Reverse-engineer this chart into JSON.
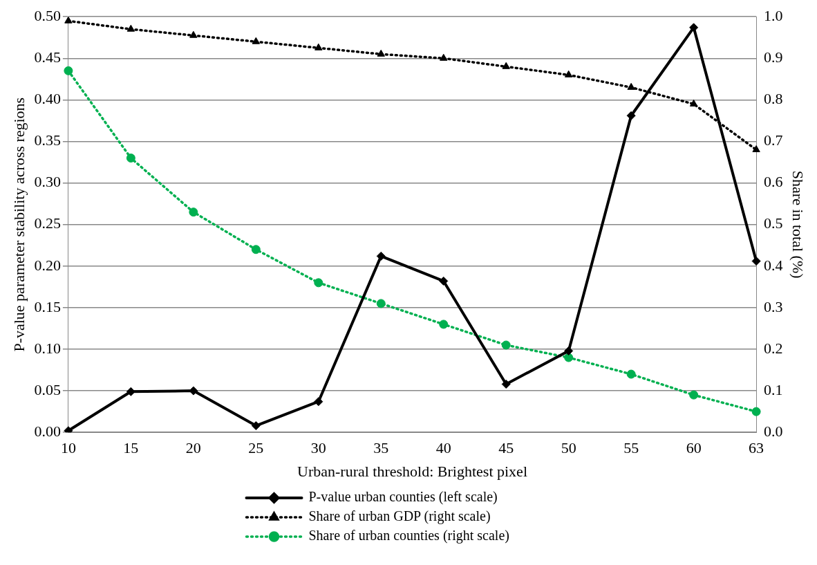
{
  "chart_data": {
    "type": "line",
    "xlabel": "Urban-rural threshold: Brightest pixel",
    "ylabel": "P-value parameter stability across regions",
    "y2label": "Share in total (%)",
    "categories": [
      "10",
      "15",
      "20",
      "25",
      "30",
      "35",
      "40",
      "45",
      "50",
      "55",
      "60",
      "63"
    ],
    "series": [
      {
        "name": "P-value urban counties (left scale)",
        "color": "#000000",
        "marker": "diamond",
        "line_style": "solid",
        "values": [
          0.002,
          0.049,
          0.05,
          0.008,
          0.037,
          0.212,
          0.182,
          0.058,
          0.098,
          0.381,
          0.487,
          0.206
        ]
      },
      {
        "name": "Share of urban GDP (right scale)",
        "color": "#000000",
        "marker": "triangle",
        "line_style": "dotted",
        "axis": "y2",
        "values": [
          0.99,
          0.97,
          0.955,
          0.94,
          0.925,
          0.91,
          0.9,
          0.88,
          0.86,
          0.83,
          0.79,
          0.68
        ]
      },
      {
        "name": "Share of urban counties (right scale)",
        "color": "#00b050",
        "marker": "circle",
        "line_style": "dotted",
        "axis": "y2",
        "values": [
          0.87,
          0.66,
          0.53,
          0.44,
          0.36,
          0.31,
          0.26,
          0.21,
          0.18,
          0.14,
          0.09,
          0.05
        ]
      }
    ],
    "ylim": [
      0,
      0.5
    ],
    "yticks": [
      {
        "value": 0,
        "label": "0.00"
      },
      {
        "value": 0.05,
        "label": "0.05"
      },
      {
        "value": 0.1,
        "label": "0.10"
      },
      {
        "value": 0.15,
        "label": "0.15"
      },
      {
        "value": 0.2,
        "label": "0.20"
      },
      {
        "value": 0.25,
        "label": "0.25"
      },
      {
        "value": 0.3,
        "label": "0.30"
      },
      {
        "value": 0.35,
        "label": "0.35"
      },
      {
        "value": 0.4,
        "label": "0.40"
      },
      {
        "value": 0.45,
        "label": "0.45"
      },
      {
        "value": 0.5,
        "label": "0.50"
      }
    ],
    "y2lim": [
      0,
      1
    ],
    "y2ticks": [
      {
        "value": 0,
        "label": "0.0"
      },
      {
        "value": 0.1,
        "label": "0.1"
      },
      {
        "value": 0.2,
        "label": "0.2"
      },
      {
        "value": 0.3,
        "label": "0.3"
      },
      {
        "value": 0.4,
        "label": "0.4"
      },
      {
        "value": 0.5,
        "label": "0.5"
      },
      {
        "value": 0.6,
        "label": "0.6"
      },
      {
        "value": 0.7,
        "label": "0.7"
      },
      {
        "value": 0.8,
        "label": "0.8"
      },
      {
        "value": 0.9,
        "label": "0.9"
      },
      {
        "value": 1,
        "label": "1.0"
      }
    ],
    "grid": "y",
    "legend": "bottom"
  }
}
